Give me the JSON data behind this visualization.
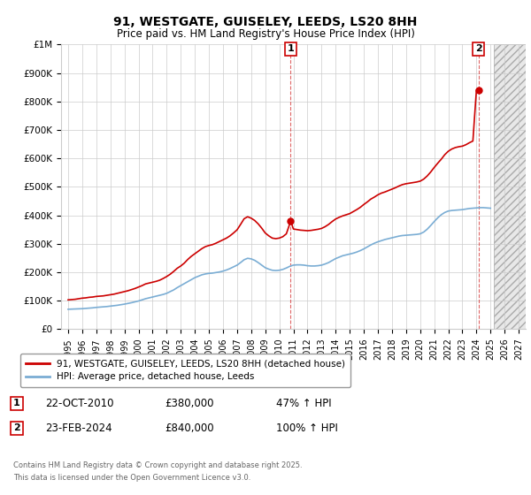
{
  "title": "91, WESTGATE, GUISELEY, LEEDS, LS20 8HH",
  "subtitle": "Price paid vs. HM Land Registry's House Price Index (HPI)",
  "ylim": [
    0,
    1000000
  ],
  "yticks": [
    0,
    100000,
    200000,
    300000,
    400000,
    500000,
    600000,
    700000,
    800000,
    900000,
    1000000
  ],
  "ytick_labels": [
    "£0",
    "£100K",
    "£200K",
    "£300K",
    "£400K",
    "£500K",
    "£600K",
    "£700K",
    "£800K",
    "£900K",
    "£1M"
  ],
  "xlim_start": 1994.5,
  "xlim_end": 2027.5,
  "xtick_years": [
    1995,
    1996,
    1997,
    1998,
    1999,
    2000,
    2001,
    2002,
    2003,
    2004,
    2005,
    2006,
    2007,
    2008,
    2009,
    2010,
    2011,
    2012,
    2013,
    2014,
    2015,
    2016,
    2017,
    2018,
    2019,
    2020,
    2021,
    2022,
    2023,
    2024,
    2025,
    2026,
    2027
  ],
  "red_line_color": "#cc0000",
  "blue_line_color": "#7aadd4",
  "grid_color": "#cccccc",
  "bg_color": "#ffffff",
  "annotation_box_color": "#cc0000",
  "hatch_start": 2025.25,
  "sale1_x": 2010.81,
  "sale1_y": 380000,
  "sale1_label": "1",
  "sale1_date": "22-OCT-2010",
  "sale1_price": "£380,000",
  "sale1_hpi": "47% ↑ HPI",
  "sale2_x": 2024.14,
  "sale2_y": 840000,
  "sale2_label": "2",
  "sale2_date": "23-FEB-2024",
  "sale2_price": "£840,000",
  "sale2_hpi": "100% ↑ HPI",
  "legend_entry1": "91, WESTGATE, GUISELEY, LEEDS, LS20 8HH (detached house)",
  "legend_entry2": "HPI: Average price, detached house, Leeds",
  "footer_line1": "Contains HM Land Registry data © Crown copyright and database right 2025.",
  "footer_line2": "This data is licensed under the Open Government Licence v3.0.",
  "red_hpi_data": {
    "years": [
      1995.0,
      1995.25,
      1995.5,
      1995.75,
      1996.0,
      1996.25,
      1996.5,
      1996.75,
      1997.0,
      1997.25,
      1997.5,
      1997.75,
      1998.0,
      1998.25,
      1998.5,
      1998.75,
      1999.0,
      1999.25,
      1999.5,
      1999.75,
      2000.0,
      2000.25,
      2000.5,
      2000.75,
      2001.0,
      2001.25,
      2001.5,
      2001.75,
      2002.0,
      2002.25,
      2002.5,
      2002.75,
      2003.0,
      2003.25,
      2003.5,
      2003.75,
      2004.0,
      2004.25,
      2004.5,
      2004.75,
      2005.0,
      2005.25,
      2005.5,
      2005.75,
      2006.0,
      2006.25,
      2006.5,
      2006.75,
      2007.0,
      2007.25,
      2007.5,
      2007.75,
      2008.0,
      2008.25,
      2008.5,
      2008.75,
      2009.0,
      2009.25,
      2009.5,
      2009.75,
      2010.0,
      2010.25,
      2010.5,
      2010.81,
      2011.0,
      2011.25,
      2011.5,
      2011.75,
      2012.0,
      2012.25,
      2012.5,
      2012.75,
      2013.0,
      2013.25,
      2013.5,
      2013.75,
      2014.0,
      2014.25,
      2014.5,
      2014.75,
      2015.0,
      2015.25,
      2015.5,
      2015.75,
      2016.0,
      2016.25,
      2016.5,
      2016.75,
      2017.0,
      2017.25,
      2017.5,
      2017.75,
      2018.0,
      2018.25,
      2018.5,
      2018.75,
      2019.0,
      2019.25,
      2019.5,
      2019.75,
      2020.0,
      2020.25,
      2020.5,
      2020.75,
      2021.0,
      2021.25,
      2021.5,
      2021.75,
      2022.0,
      2022.25,
      2022.5,
      2022.75,
      2023.0,
      2023.25,
      2023.5,
      2023.75,
      2024.0,
      2024.14
    ],
    "values": [
      103000,
      104000,
      105000,
      107000,
      109000,
      110000,
      112000,
      113000,
      115000,
      116000,
      117000,
      119000,
      121000,
      123000,
      126000,
      129000,
      132000,
      135000,
      139000,
      143000,
      148000,
      153000,
      159000,
      162000,
      165000,
      168000,
      172000,
      178000,
      185000,
      193000,
      203000,
      214000,
      222000,
      232000,
      245000,
      256000,
      265000,
      274000,
      283000,
      290000,
      294000,
      297000,
      302000,
      308000,
      314000,
      320000,
      328000,
      338000,
      349000,
      368000,
      388000,
      395000,
      390000,
      382000,
      370000,
      355000,
      338000,
      328000,
      320000,
      318000,
      320000,
      325000,
      335000,
      380000,
      352000,
      350000,
      348000,
      347000,
      346000,
      347000,
      349000,
      351000,
      354000,
      360000,
      368000,
      378000,
      387000,
      393000,
      398000,
      402000,
      406000,
      413000,
      420000,
      428000,
      438000,
      447000,
      457000,
      464000,
      472000,
      478000,
      482000,
      487000,
      492000,
      497000,
      503000,
      508000,
      511000,
      513000,
      515000,
      517000,
      520000,
      527000,
      538000,
      552000,
      568000,
      583000,
      597000,
      613000,
      625000,
      633000,
      638000,
      641000,
      643000,
      648000,
      655000,
      661000,
      840000,
      840000
    ]
  },
  "blue_hpi_data": {
    "years": [
      1995.0,
      1995.25,
      1995.5,
      1995.75,
      1996.0,
      1996.25,
      1996.5,
      1996.75,
      1997.0,
      1997.25,
      1997.5,
      1997.75,
      1998.0,
      1998.25,
      1998.5,
      1998.75,
      1999.0,
      1999.25,
      1999.5,
      1999.75,
      2000.0,
      2000.25,
      2000.5,
      2000.75,
      2001.0,
      2001.25,
      2001.5,
      2001.75,
      2002.0,
      2002.25,
      2002.5,
      2002.75,
      2003.0,
      2003.25,
      2003.5,
      2003.75,
      2004.0,
      2004.25,
      2004.5,
      2004.75,
      2005.0,
      2005.25,
      2005.5,
      2005.75,
      2006.0,
      2006.25,
      2006.5,
      2006.75,
      2007.0,
      2007.25,
      2007.5,
      2007.75,
      2008.0,
      2008.25,
      2008.5,
      2008.75,
      2009.0,
      2009.25,
      2009.5,
      2009.75,
      2010.0,
      2010.25,
      2010.5,
      2010.75,
      2011.0,
      2011.25,
      2011.5,
      2011.75,
      2012.0,
      2012.25,
      2012.5,
      2012.75,
      2013.0,
      2013.25,
      2013.5,
      2013.75,
      2014.0,
      2014.25,
      2014.5,
      2014.75,
      2015.0,
      2015.25,
      2015.5,
      2015.75,
      2016.0,
      2016.25,
      2016.5,
      2016.75,
      2017.0,
      2017.25,
      2017.5,
      2017.75,
      2018.0,
      2018.25,
      2018.5,
      2018.75,
      2019.0,
      2019.25,
      2019.5,
      2019.75,
      2020.0,
      2020.25,
      2020.5,
      2020.75,
      2021.0,
      2021.25,
      2021.5,
      2021.75,
      2022.0,
      2022.25,
      2022.5,
      2022.75,
      2023.0,
      2023.25,
      2023.5,
      2023.75,
      2024.0,
      2024.25,
      2024.5,
      2024.75,
      2025.0
    ],
    "values": [
      70000,
      70500,
      71000,
      71500,
      72000,
      73000,
      74000,
      75000,
      76500,
      77500,
      78500,
      79500,
      81000,
      82500,
      84000,
      86000,
      88000,
      90500,
      93000,
      96000,
      99000,
      103000,
      107000,
      110000,
      113000,
      116000,
      119000,
      122000,
      126000,
      132000,
      138000,
      146000,
      153000,
      160000,
      167000,
      174000,
      181000,
      186000,
      191000,
      194000,
      196000,
      197000,
      199000,
      201000,
      204000,
      208000,
      213000,
      219000,
      225000,
      234000,
      244000,
      249000,
      247000,
      242000,
      234000,
      225000,
      216000,
      211000,
      207000,
      206000,
      207000,
      210000,
      215000,
      221000,
      225000,
      226000,
      226000,
      225000,
      223000,
      222000,
      222000,
      223000,
      225000,
      229000,
      234000,
      241000,
      248000,
      253000,
      258000,
      261000,
      264000,
      267000,
      271000,
      276000,
      282000,
      289000,
      296000,
      302000,
      307000,
      311000,
      315000,
      318000,
      321000,
      324000,
      327000,
      329000,
      330000,
      331000,
      332000,
      333000,
      335000,
      341000,
      351000,
      364000,
      378000,
      391000,
      402000,
      410000,
      415000,
      417000,
      418000,
      419000,
      420000,
      422000,
      424000,
      425000,
      426000,
      427000,
      427000,
      426000,
      425000
    ]
  }
}
